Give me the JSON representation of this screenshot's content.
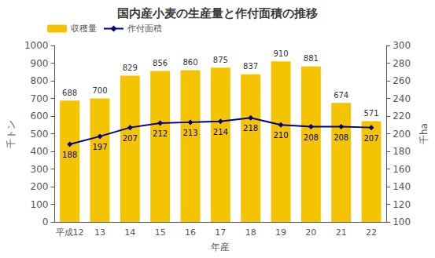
{
  "chart_data": {
    "type": "bar",
    "title": "国内産小麦の生産量と作付面積の推移",
    "categories": [
      "平成12",
      "13",
      "14",
      "15",
      "16",
      "17",
      "18",
      "19",
      "20",
      "21",
      "22"
    ],
    "series": [
      {
        "name": "収穫量",
        "type": "bar",
        "color": "#F5C400",
        "values": [
          688,
          700,
          829,
          856,
          860,
          875,
          837,
          910,
          881,
          674,
          571
        ]
      },
      {
        "name": "作付面積",
        "type": "line",
        "color": "#00008B",
        "marker": "diamond",
        "axis": "y2",
        "values": [
          188,
          197,
          207,
          212,
          213,
          214,
          218,
          210,
          208,
          208,
          207
        ]
      }
    ],
    "xlabel": "年産",
    "ylabel": "千トン",
    "y2label": "千ha",
    "ylim": [
      0,
      1000
    ],
    "yticks": [
      0,
      100,
      200,
      300,
      400,
      500,
      600,
      700,
      800,
      900,
      1000
    ],
    "y2lim": [
      100,
      300
    ],
    "y2ticks": [
      100,
      120,
      140,
      160,
      180,
      200,
      220,
      240,
      260,
      280,
      300
    ],
    "data_labels": true,
    "legend": "upper left",
    "grid": false
  }
}
